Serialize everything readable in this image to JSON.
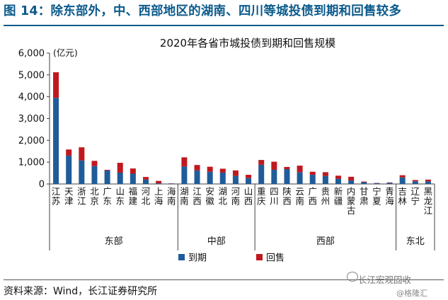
{
  "figure": {
    "label": "图 14：除东部外，中、西部地区的湖南、四川等城投债到期和回售较多",
    "source": "资料来源：Wind，长江证券研究所"
  },
  "watermark": {
    "line1": "长江宏观固收",
    "line2": "@格隆汇"
  },
  "colors": {
    "maturity": "#1f5c99",
    "putback": "#c0181f",
    "axis": "#404040",
    "title_blue": "#0b5a8c"
  },
  "chart_data": {
    "type": "bar",
    "stacked": true,
    "title": "2020年各省市城投债到期和回售规模",
    "unit_label": "(亿元)",
    "ylim": [
      0,
      6000
    ],
    "yticks": [
      "0",
      "1,000",
      "2,000",
      "3,000",
      "4,000",
      "5,000",
      "6,000"
    ],
    "ytick_values": [
      0,
      1000,
      2000,
      3000,
      4000,
      5000,
      6000
    ],
    "legend": {
      "placement": "bottom-center"
    },
    "categories": [
      "江苏",
      "天津",
      "浙江",
      "北京",
      "广东",
      "山东",
      "福建",
      "河北",
      "上海",
      "海南",
      "湖南",
      "江西",
      "安徽",
      "湖北",
      "河南",
      "山西",
      "重庆",
      "四川",
      "陕西",
      "云南",
      "广西",
      "贵州",
      "新疆",
      "内蒙古",
      "甘肃",
      "宁夏",
      "青海",
      "吉林",
      "辽宁",
      "黑龙江"
    ],
    "groups": [
      {
        "name": "东部",
        "start": 0,
        "end": 9
      },
      {
        "name": "中部",
        "start": 10,
        "end": 15
      },
      {
        "name": "西部",
        "start": 16,
        "end": 26
      },
      {
        "name": "东北",
        "start": 27,
        "end": 29
      }
    ],
    "series": [
      {
        "name": "到期",
        "values": [
          3950,
          1300,
          1080,
          820,
          620,
          520,
          470,
          200,
          30,
          20,
          800,
          620,
          560,
          520,
          370,
          270,
          880,
          650,
          680,
          540,
          420,
          360,
          240,
          160,
          80,
          40,
          50,
          300,
          120,
          120
        ]
      },
      {
        "name": "回售",
        "values": [
          1170,
          280,
          600,
          240,
          30,
          450,
          240,
          120,
          110,
          10,
          420,
          250,
          230,
          180,
          250,
          150,
          220,
          370,
          100,
          300,
          140,
          180,
          140,
          170,
          30,
          10,
          20,
          100,
          60,
          80
        ]
      }
    ]
  }
}
